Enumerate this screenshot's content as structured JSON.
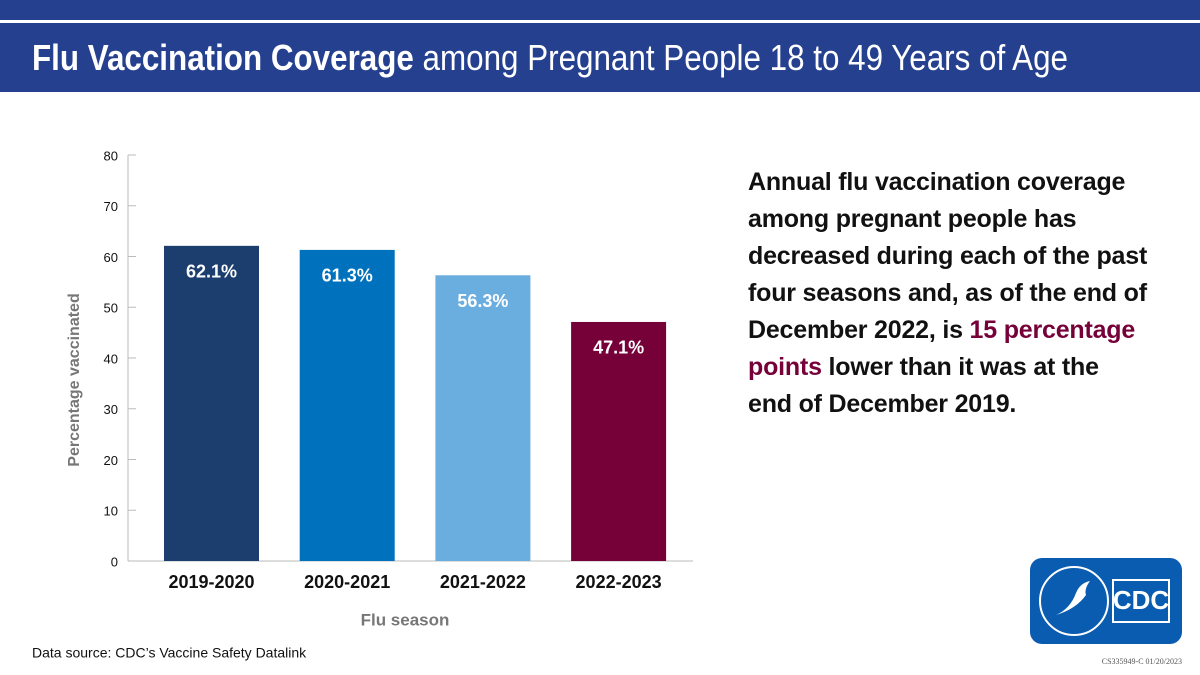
{
  "chart_data": {
    "type": "bar",
    "title": [
      "Flu Vaccination Coverage",
      " among Pregnant People 18 to 49 Years of Age"
    ],
    "categories": [
      "2019-2020",
      "2020-2021",
      "2021-2022",
      "2022-2023"
    ],
    "values": [
      62.1,
      61.3,
      56.3,
      47.1
    ],
    "value_labels": [
      "62.1%",
      "61.3%",
      "56.3%",
      "47.1%"
    ],
    "colors": [
      "#1c3e6e",
      "#0071bc",
      "#6aaee0",
      "#760038"
    ],
    "ylim": [
      0,
      80
    ],
    "yticks": [
      0,
      10,
      20,
      30,
      40,
      50,
      60,
      70,
      80
    ],
    "ylabel": "Percentage vaccinated",
    "xlabel": "Flu season",
    "source": "Data source: CDC’s Vaccine Safety Datalink",
    "note": [
      "Annual flu vaccination coverage among pregnant people has decreased during each of the past four seasons and, as of the end of December 2022, is ",
      "15 percentage points",
      " lower than it was at the end of December 2019."
    ],
    "logo": "CDC",
    "code": "CS335949-C 01/20/2023"
  }
}
